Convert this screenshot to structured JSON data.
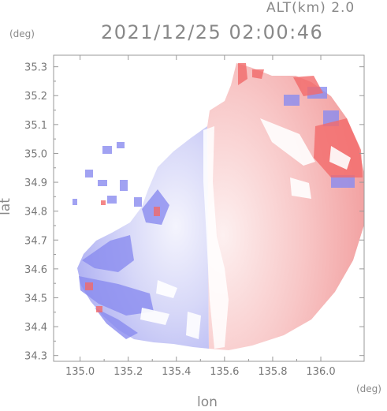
{
  "header": {
    "altitude_label": "ALT(km) 2.0",
    "timestamp": "2021/12/25 02:00:46"
  },
  "axes": {
    "x_label": "lon",
    "y_label": "lat",
    "x_unit": "(deg)",
    "y_unit": "(deg)",
    "x_range": [
      134.89,
      136.18
    ],
    "y_range": [
      34.28,
      35.34
    ],
    "x_ticks": [
      "135.0",
      "135.2",
      "135.4",
      "135.6",
      "135.8",
      "136.0"
    ],
    "y_ticks": [
      "35.3",
      "35.2",
      "35.1",
      "35.0",
      "34.9",
      "34.8",
      "34.7",
      "34.6",
      "34.5",
      "34.4",
      "34.3"
    ]
  },
  "map": {
    "type": "radar-velocity-field",
    "colors": {
      "approaching": "#8a8cf0",
      "receding": "#f08a8a",
      "near_zero": "#ffffff",
      "frame": "#999999"
    }
  }
}
